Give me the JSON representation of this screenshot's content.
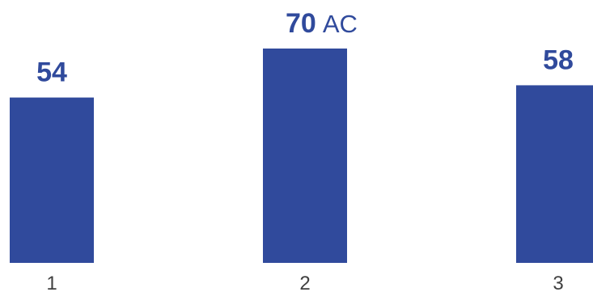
{
  "chart_data": {
    "type": "bar",
    "categories": [
      "1",
      "2",
      "3"
    ],
    "values": [
      54,
      70,
      58
    ],
    "value_labels": [
      "54",
      "70",
      "58"
    ],
    "unit": "AC",
    "unit_shown_on": "2",
    "colors": {
      "bar": "#304a9c",
      "label": "#304a9c",
      "axis_text": "#404040"
    },
    "ylim": [
      0,
      70
    ],
    "grid": false,
    "legend": "none",
    "title": "",
    "xlabel": "",
    "ylabel": ""
  }
}
